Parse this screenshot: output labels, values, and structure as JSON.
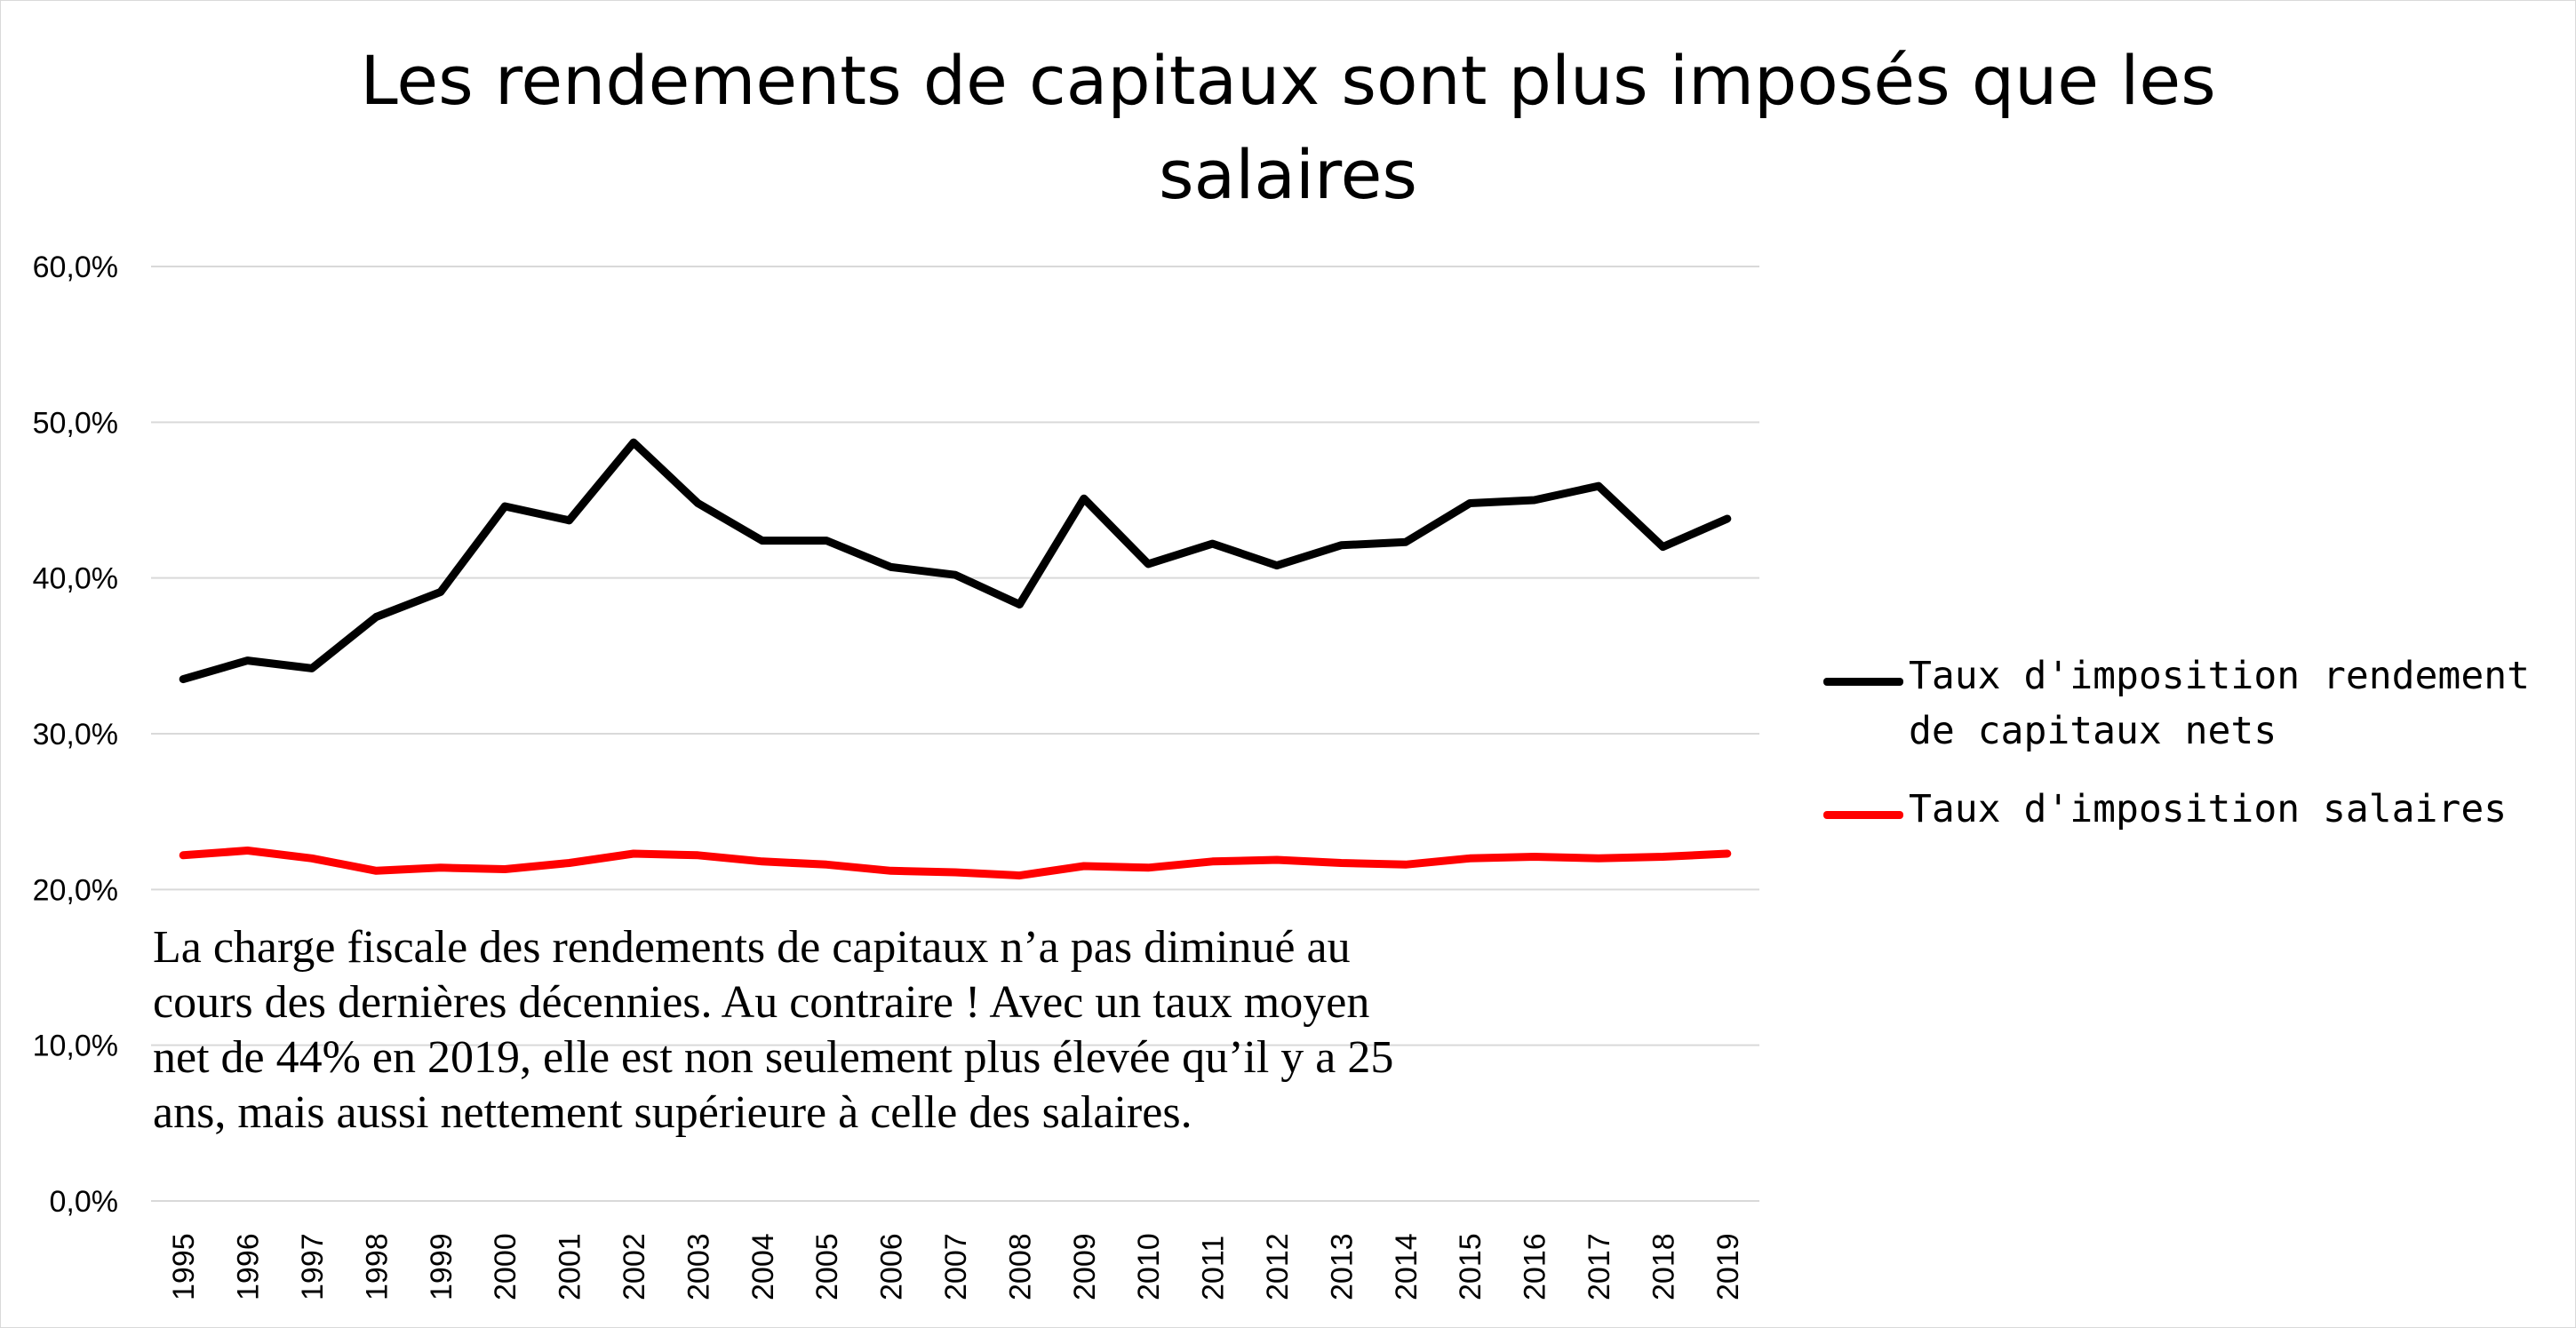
{
  "chart_data": {
    "type": "line",
    "title": "Les rendements de capitaux sont plus imposés que les salaires",
    "x": [
      "1995",
      "1996",
      "1997",
      "1998",
      "1999",
      "2000",
      "2001",
      "2002",
      "2003",
      "2004",
      "2005",
      "2006",
      "2007",
      "2008",
      "2009",
      "2010",
      "2011",
      "2012",
      "2013",
      "2014",
      "2015",
      "2016",
      "2017",
      "2018",
      "2019"
    ],
    "series": [
      {
        "name": "Taux d'imposition rendement de capitaux nets",
        "color": "#000000",
        "values": [
          33.5,
          34.7,
          34.2,
          37.5,
          39.1,
          44.6,
          43.7,
          48.7,
          44.8,
          42.4,
          42.4,
          40.7,
          40.2,
          38.3,
          45.1,
          40.9,
          42.2,
          40.8,
          42.1,
          42.3,
          44.8,
          45.0,
          45.9,
          42.0,
          43.8
        ]
      },
      {
        "name": "Taux d'imposition salaires",
        "color": "#ff0000",
        "values": [
          22.2,
          22.5,
          22.0,
          21.2,
          21.4,
          21.3,
          21.7,
          22.3,
          22.2,
          21.8,
          21.6,
          21.2,
          21.1,
          20.9,
          21.5,
          21.4,
          21.8,
          21.9,
          21.7,
          21.6,
          22.0,
          22.1,
          22.0,
          22.1,
          22.3
        ]
      }
    ],
    "ylim": [
      0,
      60
    ],
    "yticks": [
      0,
      10,
      20,
      30,
      40,
      50,
      60
    ],
    "ytick_labels": [
      "0,0%",
      "10,0%",
      "20,0%",
      "30,0%",
      "40,0%",
      "50,0%",
      "60,0%"
    ],
    "grid": true,
    "legend_position": "right",
    "annotation": "La charge fiscale des rendements de capitaux n’a pas diminué au cours des dernières décennies. Au contraire ! Avec un taux moyen net de 44% en 2019, elle est non seulement plus élevée qu’il y a 25 ans, mais aussi nettement supérieure à celle des salaires."
  }
}
